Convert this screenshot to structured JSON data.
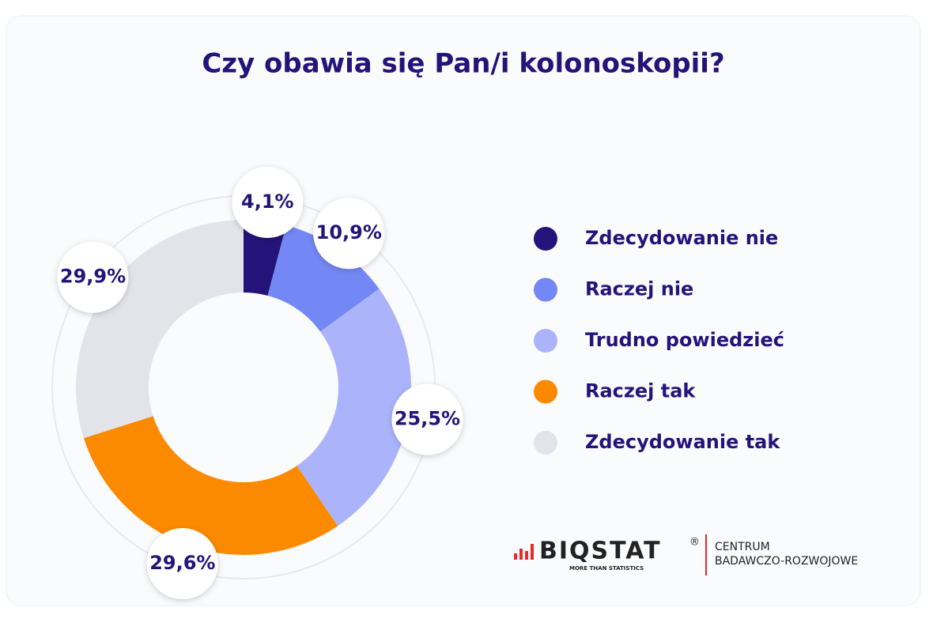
{
  "chart_data": {
    "type": "donut",
    "title": "Czy obawia się Pan/i kolonoskopii?",
    "categories": [
      "Zdecydowanie nie",
      "Raczej nie",
      "Trudno powiedzieć",
      "Raczej tak",
      "Zdecydowanie tak"
    ],
    "values": [
      4.1,
      10.9,
      25.5,
      29.6,
      29.9
    ],
    "value_labels": [
      "4,1%",
      "10,9%",
      "25,5%",
      "29,6%",
      "29,9%"
    ],
    "colors": [
      "#24147a",
      "#7488f5",
      "#abb4fb",
      "#fb8a00",
      "#e3e4ea"
    ]
  },
  "logo": {
    "name": "BIQSTAT",
    "registered": "®",
    "tagline": "MORE THAN STATISTICS",
    "line1": "CENTRUM",
    "line2": "BADAWCZO-ROZWOJOWE"
  }
}
